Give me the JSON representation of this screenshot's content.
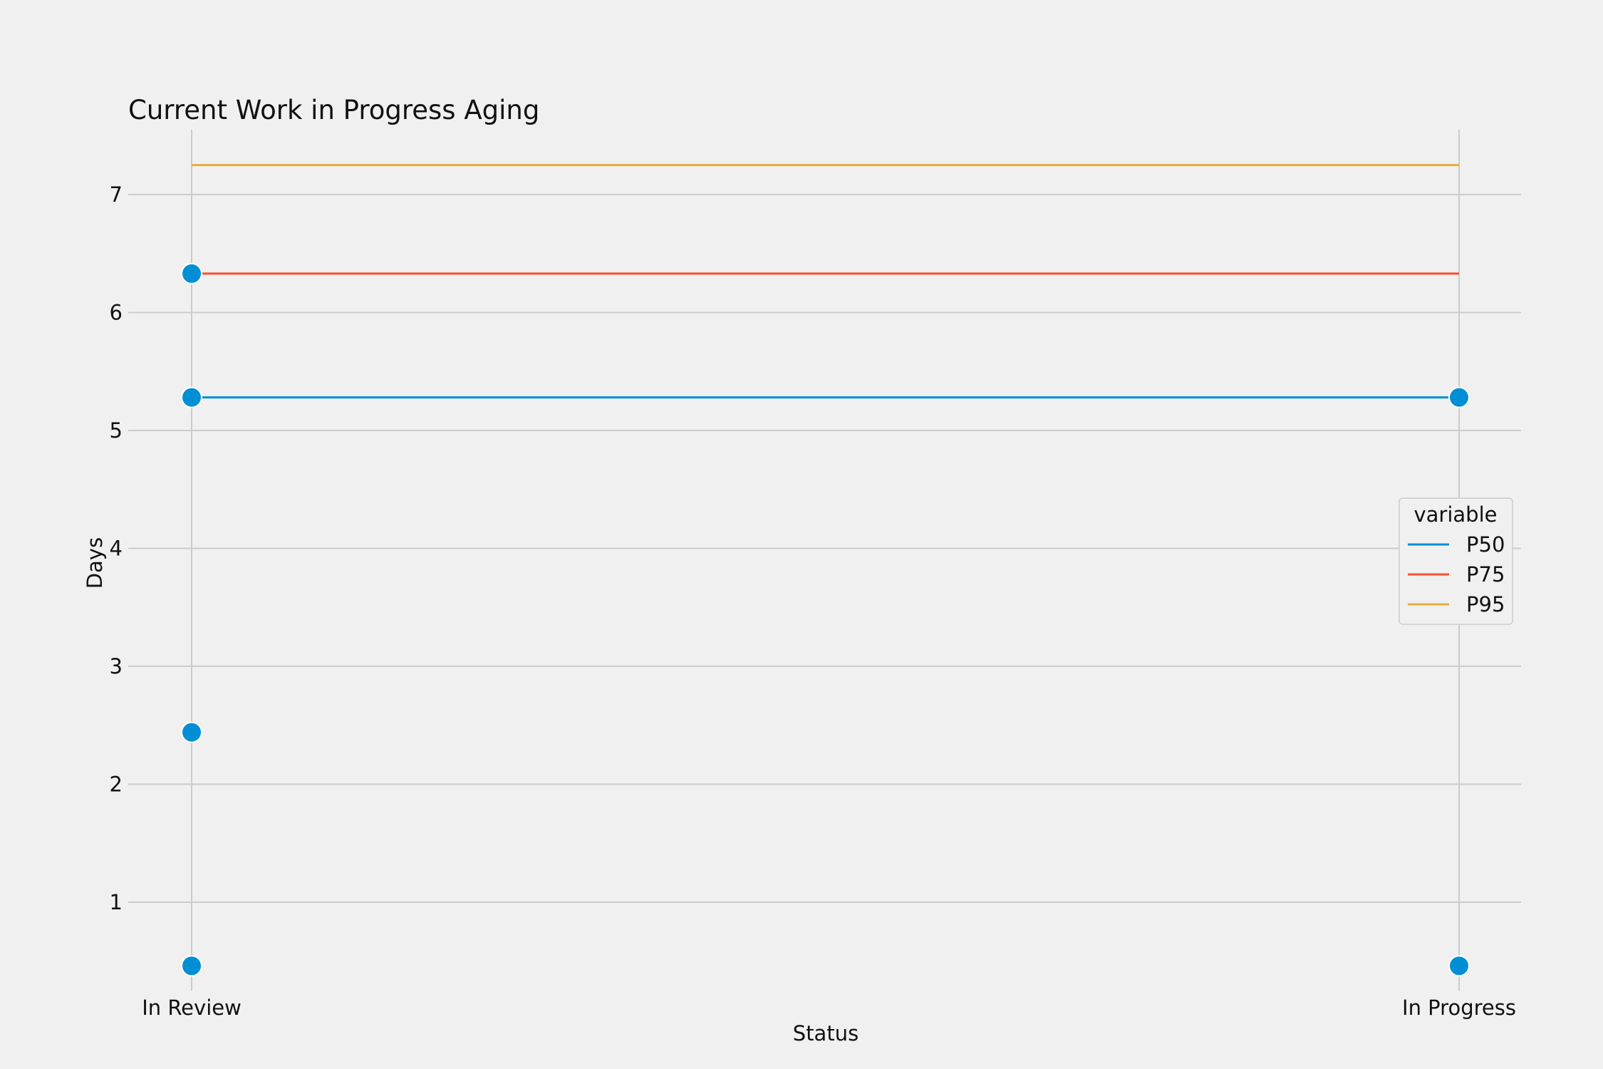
{
  "chart_data": {
    "type": "scatter",
    "title": "Current Work in Progress Aging",
    "xlabel": "Status",
    "ylabel": "Days",
    "categories": [
      "In Review",
      "In Progress"
    ],
    "y_ticks": [
      1,
      2,
      3,
      4,
      5,
      6,
      7
    ],
    "ylim": [
      0.25,
      7.55
    ],
    "grid": true,
    "points": [
      {
        "x": "In Review",
        "y": 6.33
      },
      {
        "x": "In Review",
        "y": 5.28
      },
      {
        "x": "In Review",
        "y": 2.44
      },
      {
        "x": "In Review",
        "y": 0.46
      },
      {
        "x": "In Progress",
        "y": 5.28
      },
      {
        "x": "In Progress",
        "y": 0.46
      }
    ],
    "point_color": "#008fd5",
    "reference_lines": [
      {
        "name": "P50",
        "y": 5.28,
        "color": "#008fd5"
      },
      {
        "name": "P75",
        "y": 6.33,
        "color": "#fc4f30"
      },
      {
        "name": "P95",
        "y": 7.25,
        "color": "#e5ae38"
      }
    ],
    "legend": {
      "title": "variable",
      "position": "center-right"
    }
  }
}
